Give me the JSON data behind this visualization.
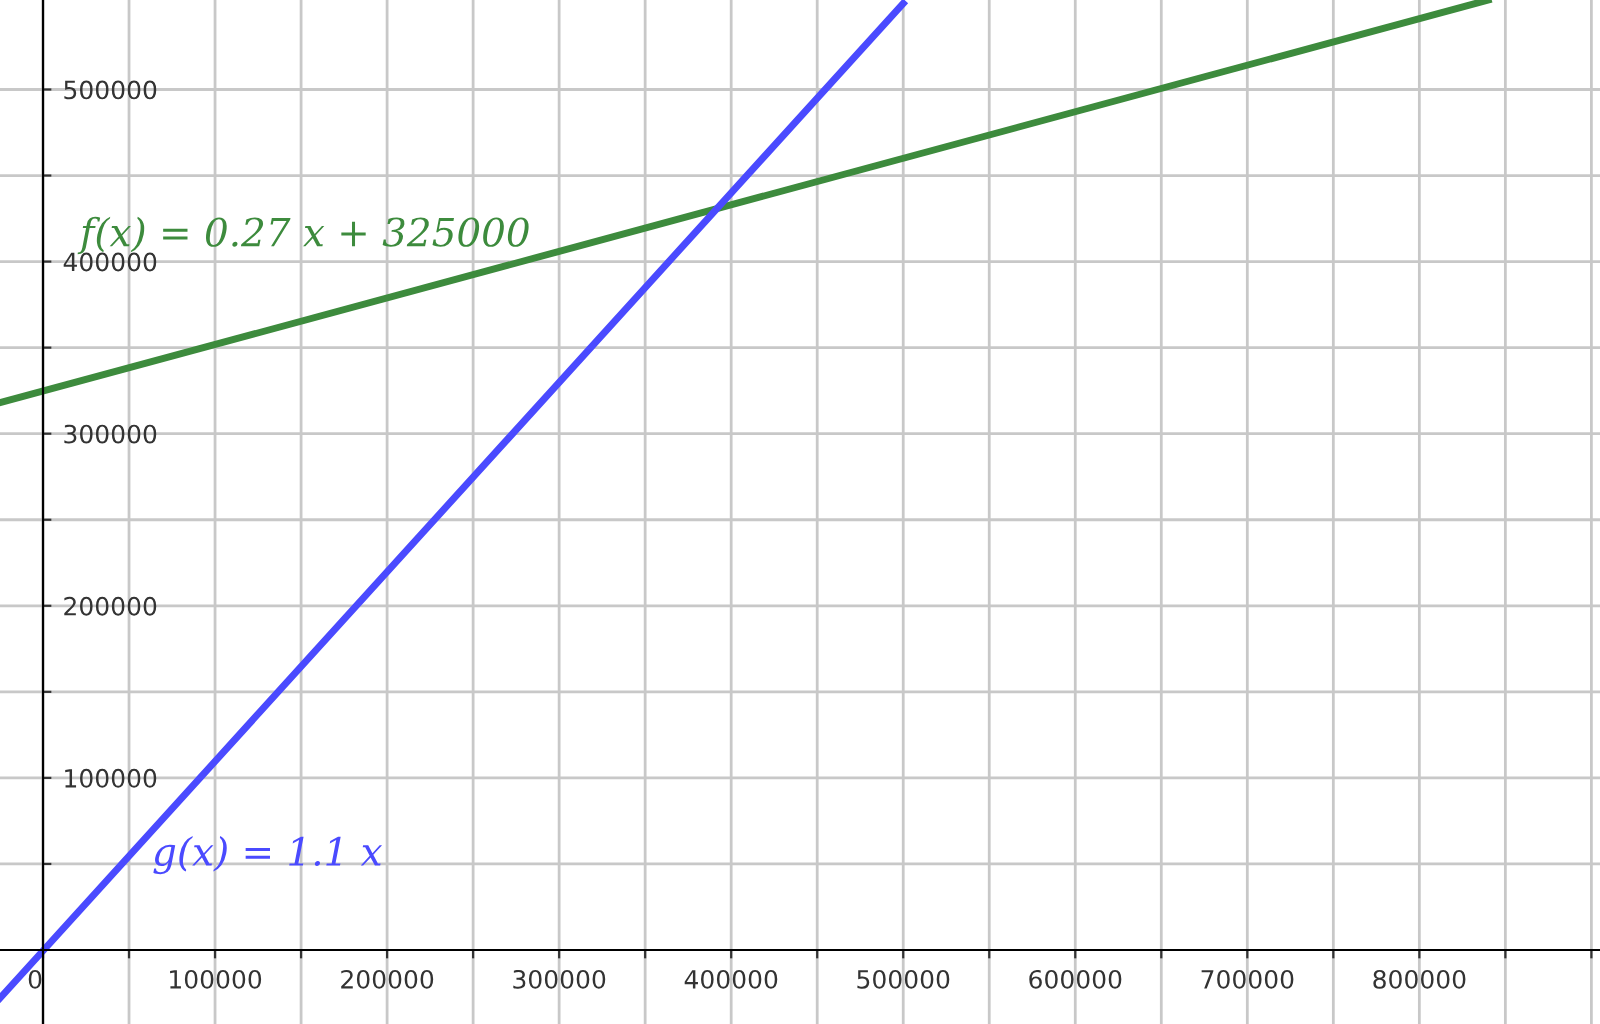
{
  "chart_data": {
    "type": "line",
    "xlim": [
      -25000,
      905000
    ],
    "ylim": [
      -43000,
      552000
    ],
    "xticks": [
      {
        "value": 0,
        "label": "0"
      },
      {
        "value": 50000,
        "label": null
      },
      100000,
      {
        "value": 150000,
        "label": null
      },
      200000,
      {
        "value": 250000,
        "label": null
      },
      300000,
      {
        "value": 350000,
        "label": null
      },
      400000,
      {
        "value": 450000,
        "label": null
      },
      500000,
      {
        "value": 550000,
        "label": null
      },
      600000,
      {
        "value": 650000,
        "label": null
      },
      700000,
      {
        "value": 750000,
        "label": null
      },
      800000,
      {
        "value": 850000,
        "label": null
      },
      {
        "value": 900000,
        "label": null
      }
    ],
    "yticks": [
      {
        "value": 50000,
        "label": null
      },
      100000,
      {
        "value": 150000,
        "label": null
      },
      200000,
      {
        "value": 250000,
        "label": null
      },
      300000,
      {
        "value": 350000,
        "label": null
      },
      400000,
      {
        "value": 450000,
        "label": null
      },
      500000
    ],
    "grid": true,
    "marker": "none",
    "line_style": "solid",
    "series": [
      {
        "color": "#3d8b3d",
        "x": [
          -25000,
          840000
        ],
        "values": [
          318000,
          552000
        ]
      },
      {
        "color": "#4a4aff",
        "x": [
          -25000,
          500000
        ],
        "values": [
          -28000,
          550000
        ]
      }
    ],
    "annotations": [
      "f(x) = 0.27 x + 325000",
      "g(x) = 1.1 x"
    ]
  }
}
